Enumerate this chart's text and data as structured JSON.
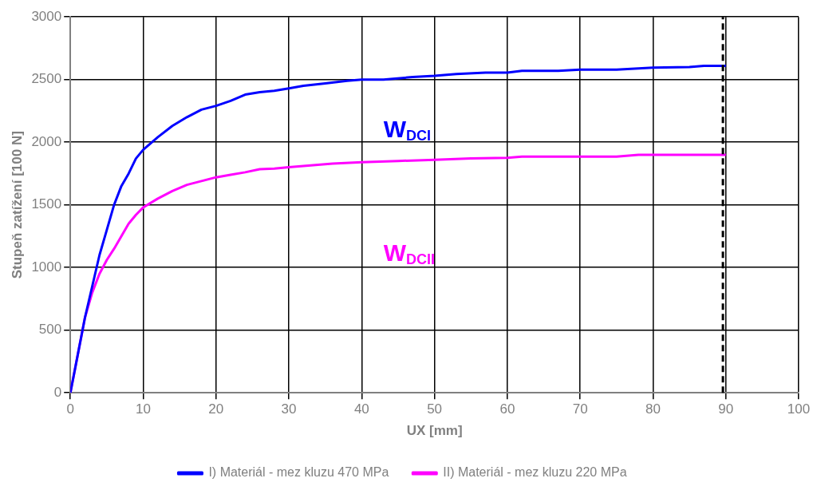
{
  "chart_data": {
    "type": "line",
    "xlabel": "UX [mm]",
    "ylabel": "Stupeň zatížení [100 N]",
    "xlim": [
      0,
      100
    ],
    "xticks": [
      0,
      10,
      20,
      30,
      40,
      50,
      60,
      70,
      80,
      90,
      100
    ],
    "ylim": [
      0,
      3000
    ],
    "yticks": [
      0,
      500,
      1000,
      1500,
      2000,
      2500,
      3000
    ],
    "grid": true,
    "legend": "bottom",
    "marker": "none",
    "line_style": "solid",
    "series": [
      {
        "name": "I) Materiál - mez kluzu 470 MPa",
        "color": "#0000ff",
        "x": [
          0,
          1,
          2,
          3,
          4,
          5,
          6,
          7,
          8,
          9,
          10,
          12,
          14,
          16,
          18,
          20,
          22,
          24,
          26,
          28,
          30,
          32,
          35,
          38,
          40,
          43,
          47,
          50,
          53,
          57,
          60,
          62,
          67,
          70,
          75,
          80,
          85,
          87,
          90
        ],
        "values": [
          0,
          300,
          600,
          850,
          1100,
          1300,
          1500,
          1650,
          1750,
          1870,
          1940,
          2040,
          2130,
          2200,
          2260,
          2290,
          2330,
          2380,
          2400,
          2410,
          2430,
          2450,
          2470,
          2490,
          2500,
          2500,
          2520,
          2530,
          2545,
          2555,
          2555,
          2570,
          2570,
          2580,
          2580,
          2595,
          2600,
          2610,
          2610
        ]
      },
      {
        "name": "II) Materiál - mez kluzu 220 MPa",
        "color": "#ff00ff",
        "x": [
          0,
          1,
          2,
          3,
          4,
          5,
          6,
          7,
          8,
          9,
          10,
          12,
          14,
          16,
          18,
          20,
          22,
          24,
          26,
          28,
          30,
          33,
          36,
          40,
          45,
          50,
          55,
          60,
          62,
          70,
          75,
          78,
          90
        ],
        "values": [
          0,
          300,
          600,
          800,
          950,
          1060,
          1150,
          1250,
          1350,
          1420,
          1480,
          1550,
          1610,
          1660,
          1690,
          1720,
          1740,
          1760,
          1785,
          1790,
          1800,
          1815,
          1830,
          1840,
          1850,
          1860,
          1870,
          1875,
          1885,
          1885,
          1885,
          1900,
          1900
        ]
      }
    ],
    "ref_lines": [
      {
        "axis": "x",
        "value": 89.6,
        "color": "#000000",
        "line_style": "dashed"
      }
    ],
    "annotations": [
      "W$_{DCI}$",
      "W$_{DCII}$"
    ]
  }
}
